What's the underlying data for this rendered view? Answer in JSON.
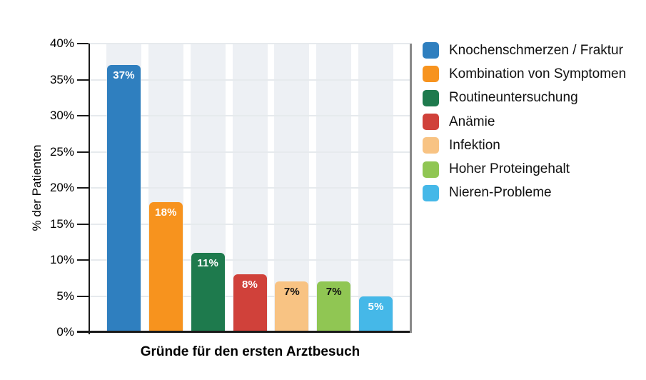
{
  "chart_data": {
    "type": "bar",
    "title": "",
    "xlabel": "Gründe für den ersten Arztbesuch",
    "ylabel": "% der Patienten",
    "ylim": [
      0,
      40
    ],
    "ytick_step": 5,
    "ytick_labels": [
      "0%",
      "5%",
      "10%",
      "15%",
      "20%",
      "25%",
      "30%",
      "35%",
      "40%"
    ],
    "grid": "horizontal",
    "legend_position": "right",
    "categories": [
      "Knochenschmerzen / Fraktur",
      "Kombination von Symptomen",
      "Routineuntersuchung",
      "Anämie",
      "Infektion",
      "Hoher Proteingehalt",
      "Nieren-Probleme"
    ],
    "values": [
      37,
      18,
      11,
      8,
      7,
      7,
      5
    ],
    "bar_labels": [
      "37%",
      "18%",
      "11%",
      "8%",
      "7%",
      "7%",
      "5%"
    ],
    "bar_colors": [
      "#2f7fbf",
      "#f7931e",
      "#1e7a4d",
      "#d0413a",
      "#f8c383",
      "#90c653",
      "#45b8e8"
    ],
    "bar_label_text_colors": [
      "#ffffff",
      "#ffffff",
      "#ffffff",
      "#ffffff",
      "#111111",
      "#111111",
      "#ffffff"
    ],
    "colors": {
      "column_band": "#edf0f4",
      "gridline": "#e6eaed",
      "axis": "#1a1a1a",
      "right_spine": "#8a8a8a"
    }
  }
}
